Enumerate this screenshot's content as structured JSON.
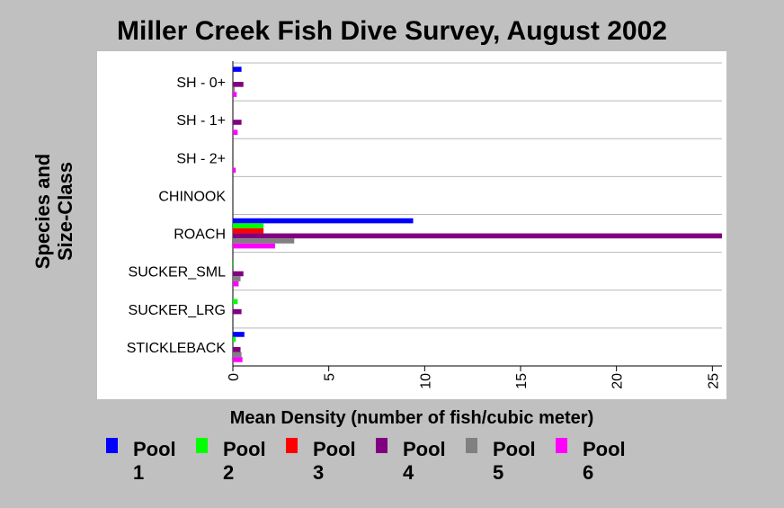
{
  "chart_data": {
    "type": "bar",
    "orientation": "horizontal",
    "title": "Miller Creek Fish Dive Survey, August 2002",
    "xlabel": "Mean Density (number of fish/cubic meter)",
    "ylabel": "Species and Size-Class",
    "xlim": [
      0,
      25.5
    ],
    "xticks": [
      0,
      5,
      10,
      15,
      20,
      25
    ],
    "grid": "horizontal lines between categories",
    "legend_position": "bottom",
    "categories": [
      "SH - 0+",
      "SH - 1+",
      "SH - 2+",
      "CHINOOK",
      "ROACH",
      "SUCKER_SML",
      "SUCKER_LRG",
      "STICKLEBACK"
    ],
    "series": [
      {
        "name": "Pool 1",
        "color": "#0000ff",
        "values": [
          0.45,
          0,
          0,
          0,
          9.4,
          0,
          0,
          0.6
        ]
      },
      {
        "name": "Pool 2",
        "color": "#00ff00",
        "values": [
          0,
          0,
          0,
          0,
          1.6,
          0.05,
          0.25,
          0.15
        ]
      },
      {
        "name": "Pool 3",
        "color": "#ff0000",
        "values": [
          0,
          0,
          0,
          0,
          1.6,
          0,
          0,
          0
        ]
      },
      {
        "name": "Pool 4",
        "color": "#800080",
        "values": [
          0.55,
          0.45,
          0,
          0,
          25.5,
          0.55,
          0.45,
          0.4
        ]
      },
      {
        "name": "Pool 5",
        "color": "#808080",
        "values": [
          0.1,
          0,
          0,
          0,
          3.2,
          0.4,
          0,
          0.45
        ]
      },
      {
        "name": "Pool 6",
        "color": "#ff00ff",
        "values": [
          0.2,
          0.25,
          0.15,
          0,
          2.2,
          0.3,
          0,
          0.5
        ]
      }
    ]
  },
  "legend": [
    {
      "line1": "Pool",
      "line2": "1",
      "color": "#0000ff"
    },
    {
      "line1": "Pool",
      "line2": "2",
      "color": "#00ff00"
    },
    {
      "line1": "Pool",
      "line2": "3",
      "color": "#ff0000"
    },
    {
      "line1": "Pool",
      "line2": "4",
      "color": "#800080"
    },
    {
      "line1": "Pool",
      "line2": "5",
      "color": "#808080"
    },
    {
      "line1": "Pool",
      "line2": "6",
      "color": "#ff00ff"
    }
  ],
  "ylabel_lines": [
    "Species and",
    "Size-Class"
  ]
}
